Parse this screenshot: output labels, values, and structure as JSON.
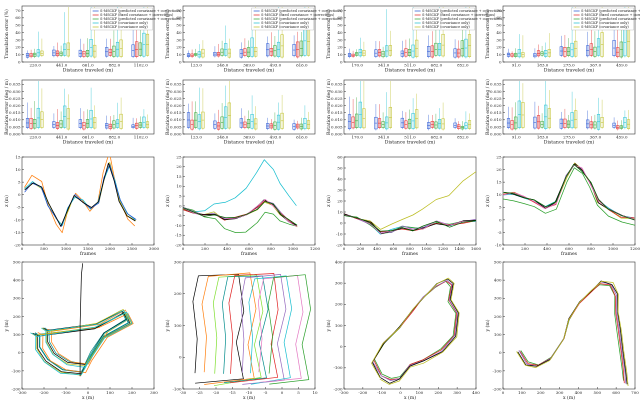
{
  "legend": [
    "S-MSCKF (predicted covariance + corrections)",
    "S-MSCKF (fixed covariance + corrections)",
    "S-MSCKF (predicted covariance + corrections)",
    "S-MSCKF (covariance only)",
    "S-MSCKF (covariance only)"
  ],
  "colors": {
    "blue": "#1f4fd1",
    "red": "#e02020",
    "green": "#2ca02c",
    "cyan": "#17becf",
    "olive": "#bcbd22",
    "orange": "#ff7f0e",
    "black": "#000000",
    "purple": "#9467bd",
    "magenta": "#e377c2",
    "darkgreen": "#006400",
    "lime": "#7fdf2f",
    "teal": "#008b8b"
  },
  "chart_data": [
    {
      "type": "box",
      "row": 0,
      "col": 0,
      "xlabel": "Distance traveled (m)",
      "ylabel": "Translation error (%)",
      "categories": [
        "220.0",
        "441.0",
        "661.0",
        "882.0",
        "1102.0"
      ],
      "ylim": [
        0,
        100
      ],
      "yticks": [
        "0",
        "10",
        "20",
        "30",
        "40",
        "50",
        "60",
        "70"
      ]
    },
    {
      "type": "box",
      "row": 0,
      "col": 1,
      "xlabel": "Distance traveled (m)",
      "ylabel": "Translation error (%)",
      "categories": [
        "123.0",
        "246.0",
        "369.0",
        "493.0",
        "616.0"
      ],
      "ylim": [
        0,
        100
      ],
      "yticks": [
        "0",
        "10",
        "20",
        "30",
        "40",
        "50",
        "60",
        "70"
      ]
    },
    {
      "type": "box",
      "row": 0,
      "col": 2,
      "xlabel": "Distance traveled (m)",
      "ylabel": "Translation error (%)",
      "categories": [
        "170.0",
        "341.0",
        "511.0",
        "682.0",
        "852.0"
      ],
      "ylim": [
        0,
        100
      ],
      "yticks": [
        "0",
        "10",
        "20",
        "30",
        "40",
        "50",
        "60",
        "70"
      ]
    },
    {
      "type": "box",
      "row": 0,
      "col": 3,
      "xlabel": "Distance traveled (m)",
      "ylabel": "Translation error (%)",
      "categories": [
        "91.0",
        "183.0",
        "275.0",
        "367.0",
        "459.0"
      ],
      "ylim": [
        0,
        100
      ],
      "yticks": [
        "0",
        "10",
        "20",
        "30",
        "40",
        "50",
        "60",
        "70"
      ]
    },
    {
      "type": "box",
      "row": 1,
      "col": 0,
      "xlabel": "Distance traveled (m)",
      "ylabel": "Rotation error (deg / m)",
      "categories": [
        "220.0",
        "441.0",
        "661.0",
        "882.0",
        "1102.0"
      ],
      "ylim": [
        0,
        0.04
      ],
      "yticks": [
        "0.000",
        "0.005",
        "0.010",
        "0.015",
        "0.020",
        "0.025",
        "0.030",
        "0.035"
      ]
    },
    {
      "type": "box",
      "row": 1,
      "col": 1,
      "xlabel": "Distance traveled (m)",
      "ylabel": "Rotation error (deg / m)",
      "categories": [
        "123.0",
        "246.0",
        "369.0",
        "493.0",
        "616.0"
      ],
      "ylim": [
        0,
        0.04
      ],
      "yticks": [
        "0.000",
        "0.005",
        "0.010",
        "0.015",
        "0.020",
        "0.025",
        "0.030",
        "0.035"
      ]
    },
    {
      "type": "box",
      "row": 1,
      "col": 2,
      "xlabel": "Distance traveled (m)",
      "ylabel": "Rotation error (deg / m)",
      "categories": [
        "170.0",
        "341.0",
        "511.0",
        "682.0",
        "852.0"
      ],
      "ylim": [
        0,
        0.04
      ],
      "yticks": [
        "0.000",
        "0.005",
        "0.010",
        "0.015",
        "0.020",
        "0.025",
        "0.030",
        "0.035"
      ]
    },
    {
      "type": "box",
      "row": 1,
      "col": 3,
      "xlabel": "Distance traveled (m)",
      "ylabel": "Rotation error (deg / m)",
      "categories": [
        "91.0",
        "183.0",
        "275.0",
        "367.0",
        "459.0"
      ],
      "ylim": [
        0,
        0.04
      ],
      "yticks": [
        "0.000",
        "0.005",
        "0.010",
        "0.015",
        "0.020",
        "0.025",
        "0.030",
        "0.035"
      ]
    },
    {
      "type": "line",
      "row": 2,
      "col": 0,
      "xlabel": "frames",
      "ylabel": "z (m)",
      "xlim": [
        0,
        3000
      ],
      "xticks": [
        "0",
        "500",
        "1000",
        "1500",
        "2000",
        "2500",
        "3000"
      ],
      "ylim": [
        -20,
        15
      ],
      "yticks": [
        "-20",
        "-15",
        "-10",
        "-5",
        "0",
        "5",
        "10",
        "15"
      ]
    },
    {
      "type": "line",
      "row": 2,
      "col": 1,
      "xlabel": "frames",
      "ylabel": "z (m)",
      "xlim": [
        0,
        1200
      ],
      "xticks": [
        "0",
        "200",
        "400",
        "600",
        "800",
        "1000",
        "1200"
      ],
      "ylim": [
        -20,
        25
      ],
      "yticks": [
        "-20",
        "-15",
        "-10",
        "-5",
        "0",
        "5",
        "10",
        "15",
        "20",
        "25"
      ]
    },
    {
      "type": "line",
      "row": 2,
      "col": 2,
      "xlabel": "frames",
      "ylabel": "z (m)",
      "xlim": [
        0,
        1600
      ],
      "xticks": [
        "0",
        "200",
        "400",
        "600",
        "800",
        "1000",
        "1200",
        "1400",
        "1600"
      ],
      "ylim": [
        -20,
        60
      ],
      "yticks": [
        "-20",
        "-10",
        "0",
        "10",
        "20",
        "30",
        "40",
        "50",
        "60"
      ]
    },
    {
      "type": "line",
      "row": 2,
      "col": 3,
      "xlabel": "frames",
      "ylabel": "z (m)",
      "xlim": [
        0,
        1200
      ],
      "xticks": [
        "0",
        "200",
        "400",
        "600",
        "800",
        "1000",
        "1200"
      ],
      "ylim": [
        -10,
        25
      ],
      "yticks": [
        "-10",
        "-5",
        "0",
        "5",
        "10",
        "15",
        "20",
        "25"
      ]
    },
    {
      "type": "line",
      "row": 3,
      "col": 0,
      "xlabel": "x (m)",
      "ylabel": "y (m)",
      "xlim": [
        -300,
        300
      ],
      "xticks": [
        "-300",
        "-200",
        "-100",
        "0",
        "100",
        "200",
        "300"
      ],
      "ylim": [
        -200,
        500
      ],
      "yticks": [
        "-200",
        "-100",
        "0",
        "100",
        "200",
        "300",
        "400",
        "500"
      ]
    },
    {
      "type": "line",
      "row": 3,
      "col": 1,
      "xlabel": "x (m)",
      "ylabel": "y (m)",
      "xlim": [
        -30,
        10
      ],
      "xticks": [
        "-30",
        "-25",
        "-20",
        "-15",
        "-10",
        "-5",
        "0",
        "5",
        "10"
      ],
      "ylim": [
        -150,
        350
      ],
      "yticks": [
        "-100",
        "0",
        "100",
        "200",
        "300"
      ]
    },
    {
      "type": "line",
      "row": 3,
      "col": 2,
      "xlabel": "x (m)",
      "ylabel": "y (m)",
      "xlim": [
        -300,
        400
      ],
      "xticks": [
        "-300",
        "-200",
        "-100",
        "0",
        "100",
        "200",
        "300",
        "400"
      ],
      "ylim": [
        -200,
        400
      ],
      "yticks": [
        "-200",
        "-100",
        "0",
        "100",
        "200",
        "300",
        "400"
      ]
    },
    {
      "type": "line",
      "row": 3,
      "col": 3,
      "xlabel": "x (m)",
      "ylabel": "y (m)",
      "xlim": [
        0,
        700
      ],
      "xticks": [
        "0",
        "100",
        "200",
        "300",
        "400",
        "500",
        "600",
        "700"
      ],
      "ylim": [
        -200,
        500
      ],
      "yticks": [
        "-200",
        "-100",
        "0",
        "100",
        "200",
        "300",
        "400",
        "500"
      ]
    }
  ]
}
